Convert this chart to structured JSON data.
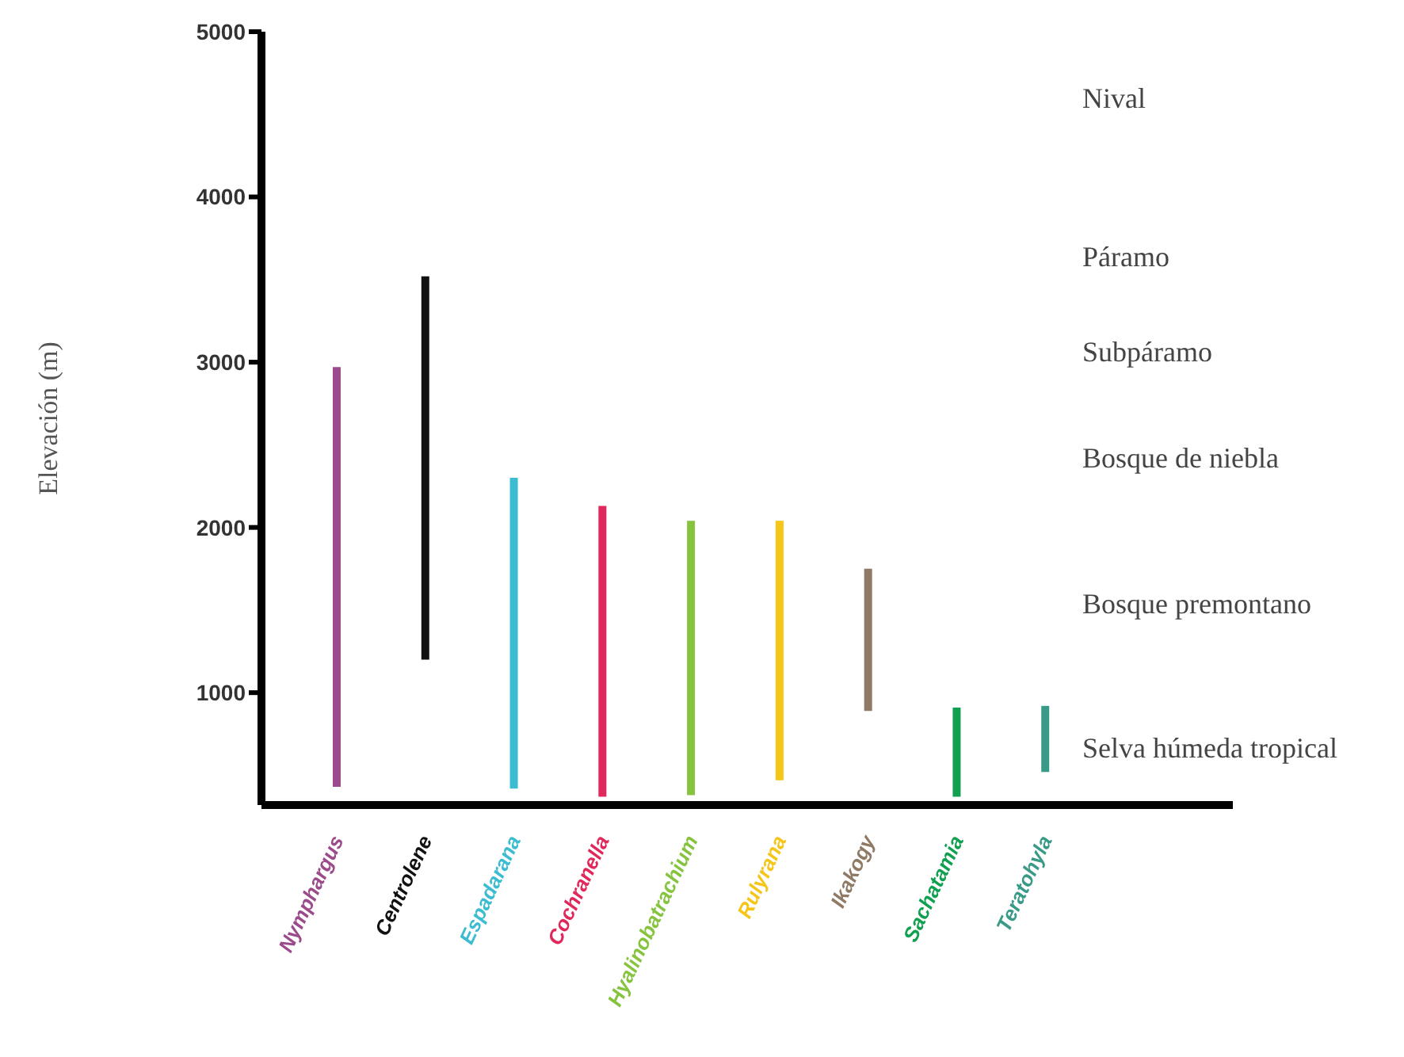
{
  "chart_data": {
    "type": "bar",
    "ylabel": "Elevación (m)",
    "categories": [
      "Nymphargus",
      "Centrolene",
      "Espadarana",
      "Cochranella",
      "Hyalinobatrachium",
      "Rulyrana",
      "Ikakogy",
      "Sachatamia",
      "Teratohyla"
    ],
    "base": [
      430,
      1200,
      420,
      370,
      380,
      470,
      890,
      370,
      520
    ],
    "values": [
      2540,
      2320,
      1880,
      1760,
      1660,
      1570,
      860,
      540,
      400
    ],
    "colors": [
      "#9b4a8c",
      "#111111",
      "#3bbcd0",
      "#e0285a",
      "#86c440",
      "#f5c518",
      "#8f7a66",
      "#10a050",
      "#3a9a88"
    ],
    "ylim": [
      320,
      5000
    ],
    "yticks": [
      1000,
      2000,
      3000,
      4000,
      5000
    ],
    "annotations": [
      "Nival",
      "Páramo",
      "Subpáramo",
      "Bosque de niebla",
      "Bosque premontano",
      "Selva húmeda tropical"
    ]
  }
}
